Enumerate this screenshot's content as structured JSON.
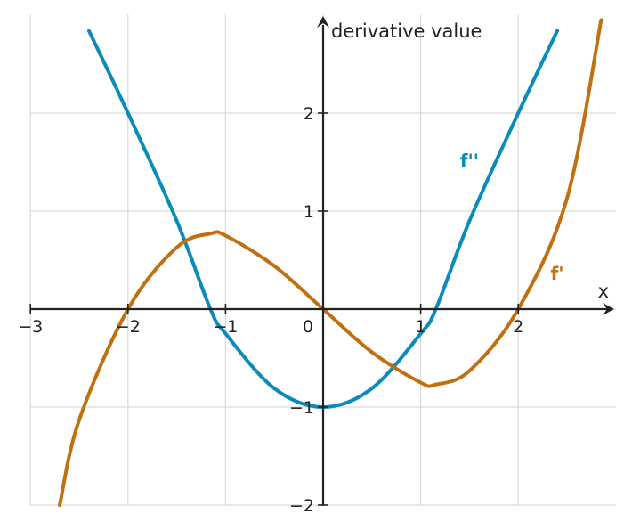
{
  "chart_data": {
    "type": "line",
    "title": "",
    "xlabel": "x",
    "ylabel": "derivative value",
    "xlim": [
      -3,
      3
    ],
    "ylim": [
      -2,
      3
    ],
    "x_ticks": [
      -3,
      -2,
      -1,
      0,
      1,
      2
    ],
    "x_tick_labels": [
      "−3",
      "−2",
      "−1",
      "0",
      "1",
      "2"
    ],
    "y_ticks": [
      -2,
      -1,
      1,
      2
    ],
    "y_tick_labels": [
      "−2",
      "−1",
      "1",
      "2"
    ],
    "grid": true,
    "legend": "none",
    "series": [
      {
        "name": "f''",
        "color": "#0a8bbb",
        "label_at": [
          1.5,
          1.45
        ],
        "points": [
          [
            -2.4,
            2.84
          ],
          [
            -2,
            2
          ],
          [
            -1.5,
            0.9
          ],
          [
            -1.155,
            0
          ],
          [
            -1,
            -0.25
          ],
          [
            -0.5,
            -0.81
          ],
          [
            0,
            -1
          ],
          [
            0.5,
            -0.81
          ],
          [
            1,
            -0.25
          ],
          [
            1.155,
            0
          ],
          [
            1.5,
            0.9
          ],
          [
            2,
            2
          ],
          [
            2.4,
            2.84
          ]
        ]
      },
      {
        "name": "f'",
        "color": "#c0700f",
        "label_at": [
          2.4,
          0.3
        ],
        "points": [
          [
            -2.7,
            -2.0
          ],
          [
            -2.5,
            -1.13
          ],
          [
            -2,
            0
          ],
          [
            -1.5,
            0.63
          ],
          [
            -1.155,
            0.77
          ],
          [
            -1,
            0.75
          ],
          [
            -0.5,
            0.44
          ],
          [
            0,
            0
          ],
          [
            0.5,
            -0.44
          ],
          [
            1,
            -0.75
          ],
          [
            1.155,
            -0.77
          ],
          [
            1.5,
            -0.63
          ],
          [
            2,
            0
          ],
          [
            2.5,
            1.13
          ],
          [
            2.85,
            2.95
          ]
        ]
      }
    ]
  }
}
